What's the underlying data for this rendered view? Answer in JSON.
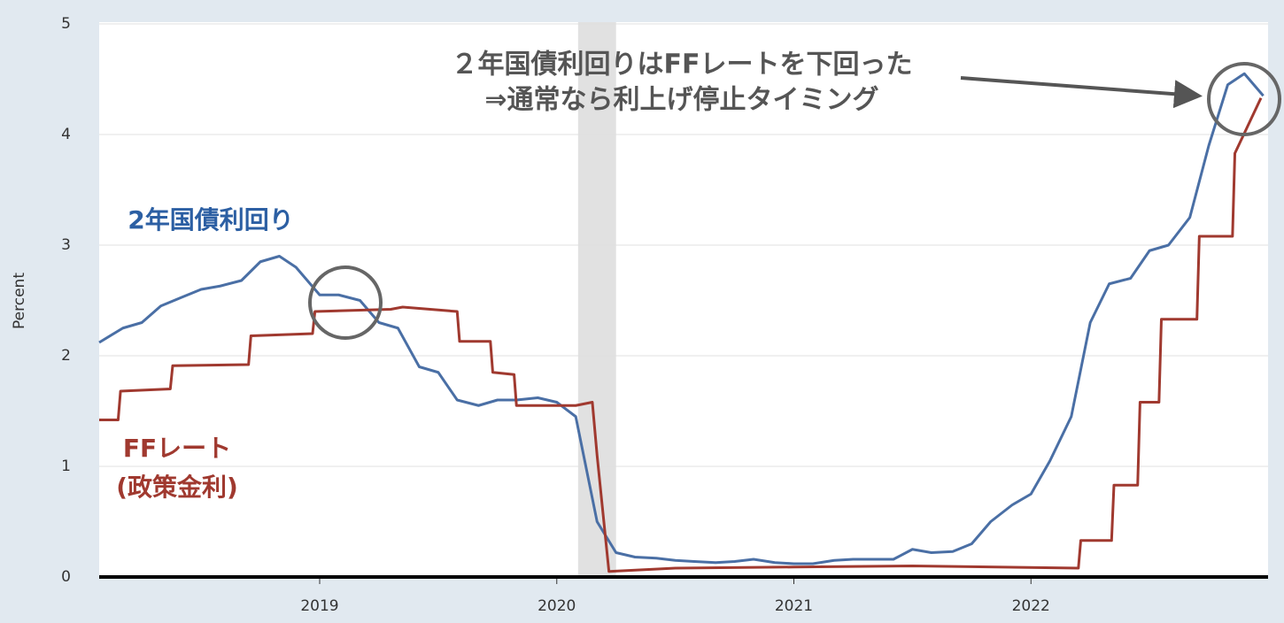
{
  "chart_data": {
    "type": "line",
    "y_label": "Percent",
    "xlim": [
      2018.07,
      2023.0
    ],
    "ylim": [
      0,
      5
    ],
    "xticks": [
      2019,
      2020,
      2021,
      2022
    ],
    "yticks": [
      0,
      1,
      2,
      3,
      4,
      5
    ],
    "grid": true,
    "recession_shading": {
      "x": [
        2020.09,
        2020.25
      ],
      "color": "#e1e1e1"
    },
    "series": [
      {
        "name": "2年国債利回り",
        "color": "#4a6fa5",
        "x": [
          2018.07,
          2018.17,
          2018.25,
          2018.33,
          2018.42,
          2018.5,
          2018.58,
          2018.67,
          2018.75,
          2018.83,
          2018.9,
          2019.0,
          2019.08,
          2019.17,
          2019.25,
          2019.33,
          2019.42,
          2019.5,
          2019.58,
          2019.67,
          2019.75,
          2019.83,
          2019.92,
          2020.0,
          2020.08,
          2020.17,
          2020.25,
          2020.33,
          2020.42,
          2020.5,
          2020.58,
          2020.67,
          2020.75,
          2020.83,
          2020.92,
          2021.0,
          2021.08,
          2021.17,
          2021.25,
          2021.33,
          2021.42,
          2021.5,
          2021.58,
          2021.67,
          2021.75,
          2021.83,
          2021.92,
          2022.0,
          2022.08,
          2022.17,
          2022.25,
          2022.33,
          2022.42,
          2022.5,
          2022.58,
          2022.67,
          2022.75,
          2022.83,
          2022.9,
          2022.98
        ],
        "values": [
          2.12,
          2.25,
          2.3,
          2.45,
          2.53,
          2.6,
          2.63,
          2.68,
          2.85,
          2.9,
          2.8,
          2.55,
          2.55,
          2.5,
          2.3,
          2.25,
          1.9,
          1.85,
          1.6,
          1.55,
          1.6,
          1.6,
          1.62,
          1.58,
          1.45,
          0.5,
          0.22,
          0.18,
          0.17,
          0.15,
          0.14,
          0.13,
          0.14,
          0.16,
          0.13,
          0.12,
          0.12,
          0.15,
          0.16,
          0.16,
          0.16,
          0.25,
          0.22,
          0.23,
          0.3,
          0.5,
          0.65,
          0.75,
          1.05,
          1.45,
          2.3,
          2.65,
          2.7,
          2.95,
          3.0,
          3.25,
          3.9,
          4.45,
          4.55,
          4.35
        ]
      },
      {
        "name": "FFレート",
        "color": "#a0392f",
        "x": [
          2018.07,
          2018.15,
          2018.16,
          2018.37,
          2018.38,
          2018.7,
          2018.71,
          2018.97,
          2018.98,
          2019.3,
          2019.35,
          2019.58,
          2019.59,
          2019.72,
          2019.73,
          2019.82,
          2019.83,
          2020.08,
          2020.15,
          2020.17,
          2020.22,
          2020.5,
          2021.0,
          2021.5,
          2022.2,
          2022.21,
          2022.34,
          2022.35,
          2022.45,
          2022.46,
          2022.54,
          2022.55,
          2022.7,
          2022.71,
          2022.85,
          2022.86,
          2022.97
        ],
        "values": [
          1.42,
          1.42,
          1.68,
          1.7,
          1.91,
          1.92,
          2.18,
          2.2,
          2.4,
          2.42,
          2.44,
          2.4,
          2.13,
          2.13,
          1.85,
          1.83,
          1.55,
          1.55,
          1.58,
          1.1,
          0.05,
          0.08,
          0.09,
          0.1,
          0.08,
          0.33,
          0.33,
          0.83,
          0.83,
          1.58,
          1.58,
          2.33,
          2.33,
          3.08,
          3.08,
          3.83,
          4.33
        ]
      }
    ],
    "annotations": [
      "(政策金利)",
      "２年国債利回りはFFレートを下回った",
      "⇒通常なら利上げ停止タイミング"
    ]
  }
}
